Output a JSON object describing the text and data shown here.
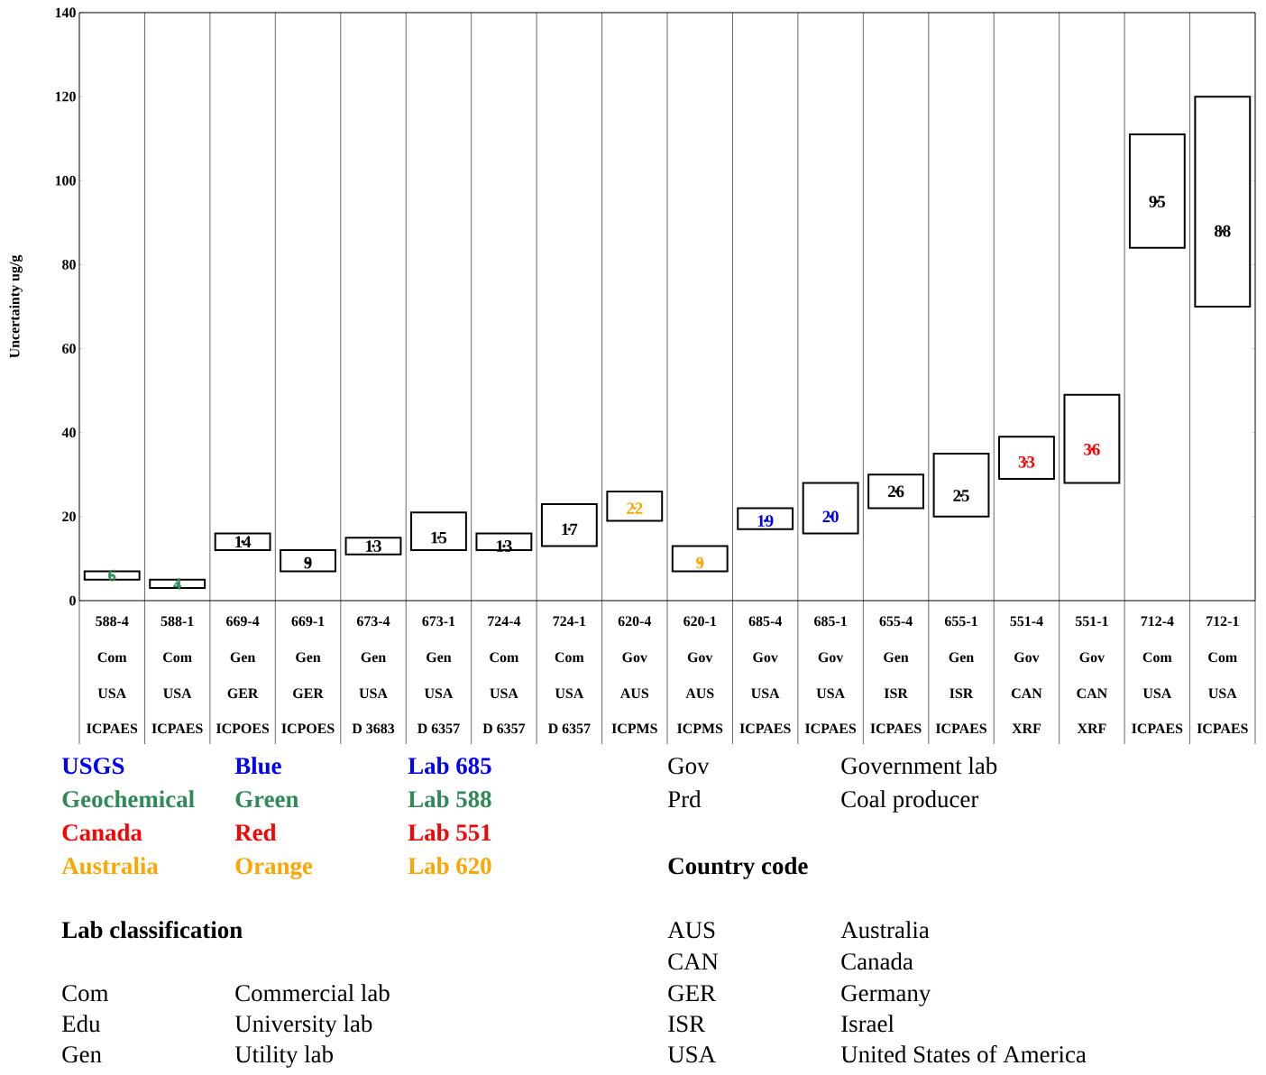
{
  "chart_data": {
    "type": "bar",
    "ylabel": "Uncertainty ug/g",
    "categories": [
      "588-4",
      "588-1",
      "669-4",
      "669-1",
      "673-4",
      "673-1",
      "724-4",
      "724-1",
      "620-4",
      "620-1",
      "685-4",
      "685-1",
      "655-4",
      "655-1",
      "551-4",
      "551-1",
      "712-4",
      "712-1"
    ],
    "series": [
      {
        "type": "bar",
        "color": "#ffffff",
        "base": [
          5,
          3,
          12,
          7,
          11,
          12,
          12,
          13,
          19,
          7,
          17,
          16,
          22,
          20,
          29,
          28,
          84,
          70
        ],
        "values": [
          2,
          2,
          4,
          5,
          4,
          9,
          4,
          10,
          7,
          6,
          5,
          12,
          8,
          15,
          10,
          21,
          27,
          50
        ]
      },
      {
        "type": "scatter",
        "marker": "circle",
        "data_labels": true,
        "values": [
          6,
          4,
          14,
          9,
          13,
          15,
          13,
          17,
          22,
          9,
          19,
          20,
          26,
          25,
          33,
          36,
          95,
          88
        ],
        "colors": [
          "#2e8b57",
          "#2e8b57",
          "#000000",
          "#000000",
          "#000000",
          "#000000",
          "#000000",
          "#000000",
          "#ffa500",
          "#ffa500",
          "#0000ff",
          "#0000ff",
          "#000000",
          "#000000",
          "#ff0000",
          "#ff0000",
          "#000000",
          "#000000"
        ]
      }
    ],
    "ylim": [
      0,
      140
    ],
    "yticks": [
      0,
      20,
      40,
      60,
      80,
      100,
      120,
      140
    ],
    "grid": "x",
    "annotations": [
      "USGS",
      "Blue",
      "Lab 685",
      "Geochemical",
      "Green",
      "Lab 588",
      "Canada",
      "Red",
      "Lab 551",
      "Australia",
      "Orange",
      "Lab 620",
      "Lab classification",
      "Com",
      "Commercial lab",
      "Edu",
      "University lab",
      "Gen",
      "Utility lab",
      "Gov",
      "Government lab",
      "Prd",
      "Coal producer",
      "Country code",
      "AUS",
      "Australia",
      "CAN",
      "Canada",
      "GER",
      "Germany",
      "ISR",
      "Israel",
      "USA",
      "United States of America",
      "Com",
      "Com",
      "Gen",
      "Gen",
      "Gen",
      "Gen",
      "Com",
      "Com",
      "Gov",
      "Gov",
      "Gov",
      "Gov",
      "Gen",
      "Gen",
      "Gov",
      "Gov",
      "Com",
      "Com",
      "USA",
      "USA",
      "GER",
      "GER",
      "USA",
      "USA",
      "USA",
      "USA",
      "AUS",
      "AUS",
      "USA",
      "USA",
      "ISR",
      "ISR",
      "CAN",
      "CAN",
      "USA",
      "USA",
      "ICPAES",
      "ICPAES",
      "ICPOES",
      "ICPOES",
      "D 3683",
      "D 6357",
      "D 6357",
      "D 6357",
      "ICPMS",
      "ICPMS",
      "ICPAES",
      "ICPAES",
      "ICPAES",
      "ICPAES",
      "XRF",
      "XRF",
      "ICPAES",
      "ICPAES"
    ]
  }
}
